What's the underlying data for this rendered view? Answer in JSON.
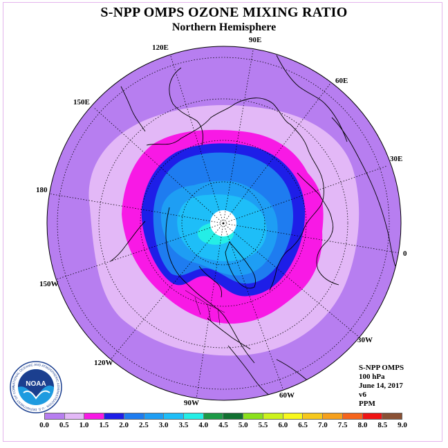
{
  "header": {
    "title": "S-NPP OMPS OZONE MIXING RATIO",
    "subtitle": "Northern Hemisphere"
  },
  "longitude_labels": {
    "lon_90e": "90E",
    "lon_60e": "60E",
    "lon_30e": "30E",
    "lon_0": "0",
    "lon_30w": "30W",
    "lon_60w": "60W",
    "lon_90w": "90W",
    "lon_120w": "120W",
    "lon_150w": "150W",
    "lon_180": "180",
    "lon_150e": "150E",
    "lon_120e": "120E"
  },
  "info": {
    "instrument": "S-NPP OMPS",
    "level": "100 hPa",
    "date": "June 14, 2017",
    "version": "v6",
    "units": "PPM"
  },
  "logo": {
    "text": "NOAA",
    "ring_text": "NATIONAL OCEANIC AND ATMOSPHERIC ADMINISTRATION · U.S. DEPARTMENT OF COMMERCE"
  },
  "colorbar": {
    "tick_labels": [
      "0.0",
      "0.5",
      "1.0",
      "1.5",
      "2.0",
      "2.5",
      "3.0",
      "3.5",
      "4.0",
      "4.5",
      "5.0",
      "5.5",
      "6.0",
      "6.5",
      "7.0",
      "7.5",
      "8.0",
      "8.5",
      "9.0"
    ],
    "colors": [
      "#b77ef0",
      "#e3b8f7",
      "#f819e5",
      "#1e1ee8",
      "#1e7cf0",
      "#1e9ef4",
      "#1ebef8",
      "#24eee6",
      "#1c9a46",
      "#117030",
      "#8ae01c",
      "#ccf21c",
      "#f8f81c",
      "#f6c81c",
      "#f6a01c",
      "#f6641c",
      "#f01414",
      "#8a5034"
    ]
  }
}
